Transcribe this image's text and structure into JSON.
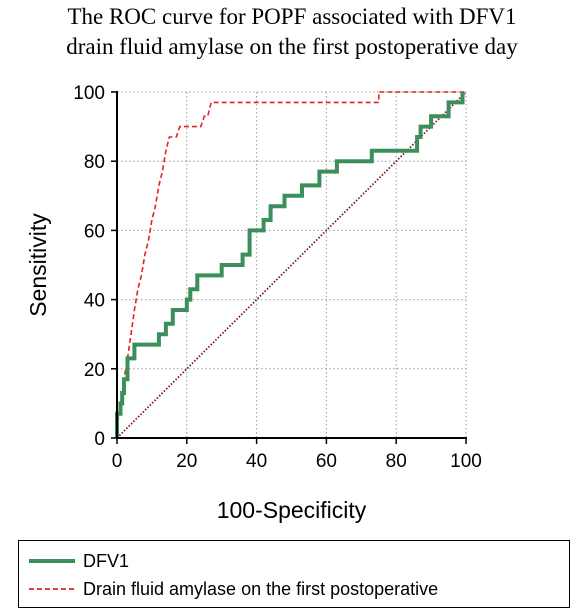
{
  "chart_data": {
    "type": "line",
    "title_lines": [
      "The ROC curve for POPF associated with DFV1",
      "drain fluid amylase on the first postoperative day"
    ],
    "xlabel": "100-Specificity",
    "ylabel": "Sensitivity",
    "xlim": [
      0,
      100
    ],
    "ylim": [
      0,
      100
    ],
    "xticks": [
      "0",
      "20",
      "40",
      "60",
      "80",
      "100"
    ],
    "yticks": [
      "0",
      "20",
      "40",
      "60",
      "80",
      "100"
    ],
    "grid": true,
    "legend_position": "bottom",
    "series": [
      {
        "name": "DFV1",
        "color": "#3b8f5a",
        "style": "solid",
        "x": [
          0,
          0,
          1,
          1,
          1.5,
          1.5,
          2,
          2,
          3,
          3,
          5,
          5,
          12,
          12,
          14,
          14,
          16,
          16,
          20,
          20,
          21,
          21,
          22,
          22,
          23,
          23,
          30,
          30,
          36,
          36,
          38,
          38,
          42,
          42,
          44,
          44,
          46,
          46,
          48,
          48,
          53,
          53,
          58,
          58,
          63,
          63,
          68,
          68,
          73,
          73,
          85,
          85,
          86,
          86,
          87,
          87,
          90,
          90,
          95,
          95,
          99,
          99
        ],
        "y": [
          0,
          7,
          7,
          10,
          10,
          13,
          13,
          17,
          17,
          23,
          23,
          27,
          27,
          30,
          30,
          33,
          33,
          37,
          37,
          40,
          40,
          43,
          43,
          43,
          43,
          47,
          47,
          50,
          50,
          53,
          53,
          60,
          60,
          63,
          63,
          67,
          67,
          67,
          67,
          70,
          70,
          73,
          73,
          77,
          77,
          80,
          80,
          80,
          80,
          83,
          83,
          83,
          83,
          87,
          87,
          90,
          90,
          93,
          93,
          97,
          97,
          100
        ]
      },
      {
        "name": "Drain fluid amylase on the first postoperative",
        "color": "#e02424",
        "style": "dashed",
        "x": [
          0,
          0.5,
          1,
          1.5,
          2,
          3,
          4,
          5,
          6,
          7,
          8,
          9,
          10,
          11,
          12,
          13,
          14,
          15,
          16,
          17,
          18,
          19,
          20,
          22,
          24,
          25,
          26,
          27,
          30,
          40,
          50,
          60,
          70,
          75,
          75,
          85,
          90,
          100
        ],
        "y": [
          0,
          7,
          10,
          13,
          17,
          23,
          30,
          37,
          43,
          47,
          53,
          57,
          63,
          67,
          73,
          77,
          83,
          87,
          87,
          87,
          90,
          90,
          90,
          90,
          90,
          93,
          93,
          97,
          97,
          97,
          97,
          97,
          97,
          97,
          100,
          100,
          100,
          100
        ]
      },
      {
        "name": "",
        "color": "#7a1818",
        "style": "dotted",
        "x": [
          0,
          100
        ],
        "y": [
          0,
          100
        ]
      }
    ]
  }
}
